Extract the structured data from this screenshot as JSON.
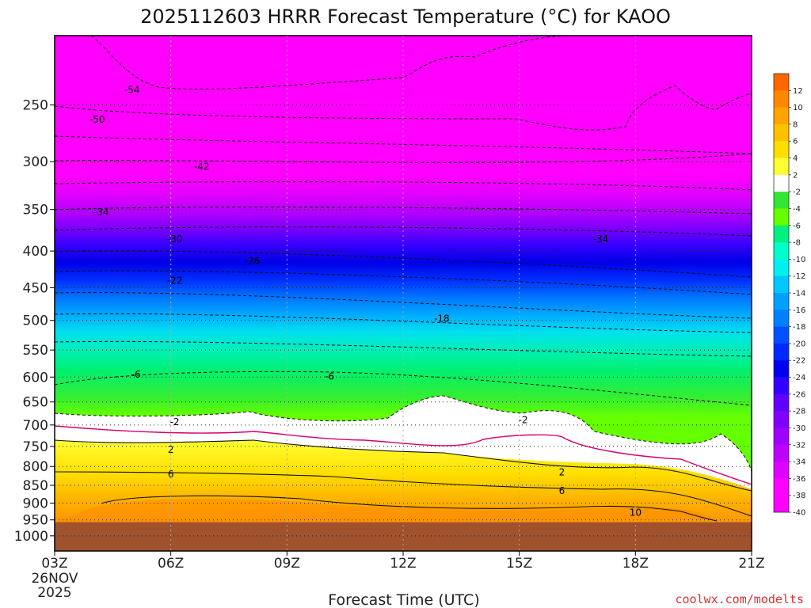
{
  "chart_data": {
    "type": "heatmap",
    "title": "2025112603 HRRR Forecast Temperature (°C) for KAOO",
    "xlabel": "Forecast Time (UTC)",
    "ylabel": "",
    "x_ticks": [
      "03Z",
      "06Z",
      "09Z",
      "12Z",
      "15Z",
      "18Z",
      "21Z"
    ],
    "x_start_extra": [
      "26NOV",
      "2025"
    ],
    "x_range_hours": [
      3,
      21
    ],
    "y_ticks": [
      250,
      300,
      350,
      400,
      450,
      500,
      550,
      600,
      650,
      700,
      750,
      800,
      850,
      900,
      950,
      1000
    ],
    "y_range_hpa": [
      200,
      1050
    ],
    "y_scale": "log",
    "ground_level_hpa": 957,
    "freezing_contour_color": "#d4006e",
    "ground_color": "#a0522d",
    "colorbar": {
      "labels": [
        "12",
        "10",
        "8",
        "6",
        "4",
        "2",
        "-2",
        "-4",
        "-6",
        "-8",
        "-10",
        "-12",
        "-14",
        "-16",
        "-18",
        "-20",
        "-22",
        "-24",
        "-26",
        "-28",
        "-30",
        "-32",
        "-34",
        "-36",
        "-38",
        "-40"
      ],
      "colors": [
        "#ff6600",
        "#ff8800",
        "#ffa300",
        "#ffc000",
        "#ffdf00",
        "#ffff33",
        "#ffffff",
        "#33e633",
        "#66ff00",
        "#00f080",
        "#00ffc8",
        "#00f0f0",
        "#00c8ff",
        "#00a0ff",
        "#0080ff",
        "#0050ff",
        "#0028ff",
        "#0000f0",
        "#3000ff",
        "#6000ff",
        "#8000ff",
        "#a000ff",
        "#c000ff",
        "#e000ff",
        "#ff00ff",
        "#ff00ff"
      ]
    },
    "contour_labels": [
      {
        "text": "-54",
        "hour": 5.0,
        "hpa": 238
      },
      {
        "text": "-50",
        "hour": 4.1,
        "hpa": 262
      },
      {
        "text": "-42",
        "hour": 6.8,
        "hpa": 305
      },
      {
        "text": "-34",
        "hour": 4.2,
        "hpa": 353
      },
      {
        "text": "-30",
        "hour": 6.1,
        "hpa": 385
      },
      {
        "text": "-26",
        "hour": 8.1,
        "hpa": 413
      },
      {
        "text": "-22",
        "hour": 6.1,
        "hpa": 440
      },
      {
        "text": "-18",
        "hour": 13.0,
        "hpa": 497
      },
      {
        "text": "-34",
        "hour": 17.1,
        "hpa": 385
      },
      {
        "text": "-6",
        "hour": 5.1,
        "hpa": 595
      },
      {
        "text": "-6",
        "hour": 10.1,
        "hpa": 599
      },
      {
        "text": "-2",
        "hour": 6.1,
        "hpa": 693
      },
      {
        "text": "-2",
        "hour": 15.1,
        "hpa": 689
      },
      {
        "text": "2",
        "hour": 6.0,
        "hpa": 758
      },
      {
        "text": "6",
        "hour": 6.0,
        "hpa": 820
      },
      {
        "text": "2",
        "hour": 16.1,
        "hpa": 815
      },
      {
        "text": "6",
        "hour": 16.1,
        "hpa": 865
      },
      {
        "text": "10",
        "hour": 18.0,
        "hpa": 928
      }
    ]
  },
  "credit": "coolwx.com/modelts"
}
